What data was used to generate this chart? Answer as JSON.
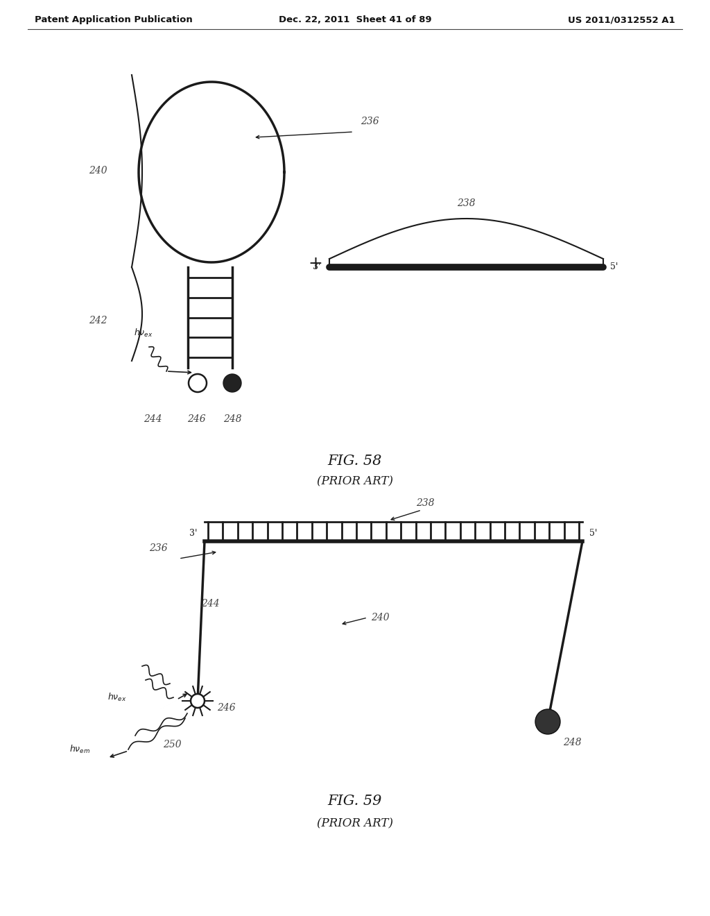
{
  "header_left": "Patent Application Publication",
  "header_mid": "Dec. 22, 2011  Sheet 41 of 89",
  "header_right": "US 2011/0312552 A1",
  "fig58_title": "FIG. 58",
  "fig58_subtitle": "(PRIOR ART)",
  "fig59_title": "FIG. 59",
  "fig59_subtitle": "(PRIOR ART)",
  "bg_color": "#ffffff",
  "line_color": "#1a1a1a",
  "label_color": "#444444"
}
